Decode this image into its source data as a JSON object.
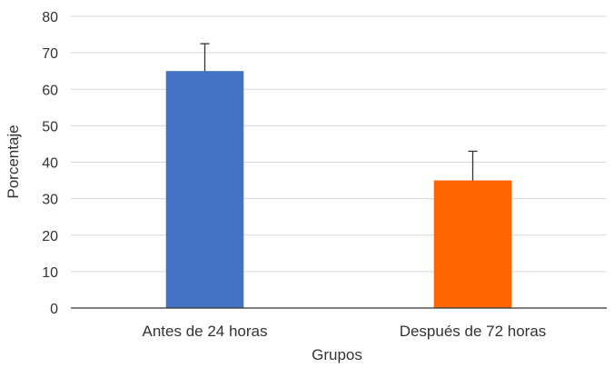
{
  "chart_data": {
    "type": "bar",
    "title": "",
    "xlabel": "Grupos",
    "ylabel": "Porcentaje",
    "categories": [
      "Antes de 24 horas",
      "Después de 72 horas"
    ],
    "values": [
      65,
      35
    ],
    "error_upper": [
      72.5,
      43
    ],
    "colors": [
      "#4472c4",
      "#ff6600"
    ],
    "ylim": [
      0,
      80
    ],
    "yticks": [
      0,
      10,
      20,
      30,
      40,
      50,
      60,
      70,
      80
    ],
    "grid": true,
    "legend": "none"
  }
}
